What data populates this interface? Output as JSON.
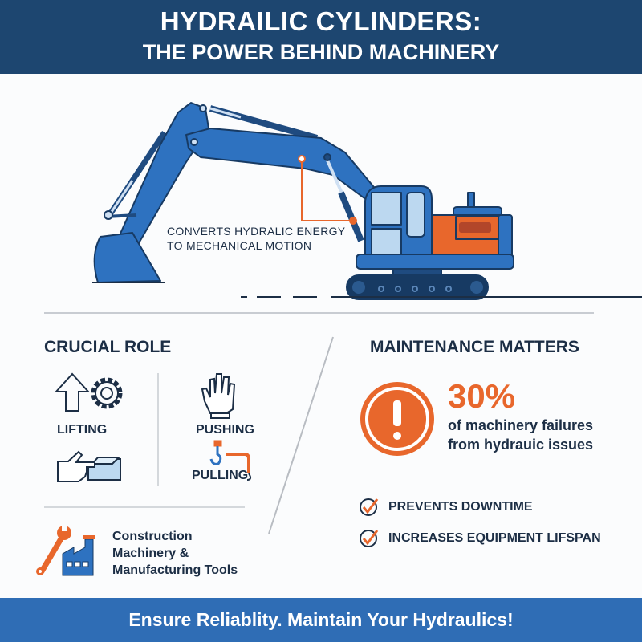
{
  "header": {
    "title": "HYDRAILIC CYLINDERS:",
    "subtitle": "THE POWER BEHIND MACHINERY"
  },
  "hero": {
    "annotation_line1": "CONVERTS HYDRALIC ENERGY",
    "annotation_line2": "TO MECHANICAL MOTION",
    "icon": "excavator-illustration"
  },
  "crucial_role": {
    "title": "CRUCIAL ROLE",
    "items": [
      {
        "label": "LIFTING",
        "icon": "arrow-up-gear-icon"
      },
      {
        "label": "PUSHING",
        "icon": "hand-icon"
      },
      {
        "label": "PULLING",
        "icon": "hook-icon"
      }
    ],
    "extra_icon": "hand-push-box-icon",
    "applications": {
      "line1": "Construction",
      "line2": "Machinery &",
      "line3": "Manufacturing Tools",
      "icon": "wrench-factory-icon"
    }
  },
  "maintenance": {
    "title": "MAINTENANCE MATTERS",
    "stat": "30%",
    "stat_line1": "of machinery failures",
    "stat_line2": "from hydrauic issues",
    "checks": [
      "PREVENTS DOWNTIME",
      "INCREASES EQUIPMENT LIFSPAN"
    ]
  },
  "footer": {
    "text": "Ensure Reliablity. Maintain Your Hydraulics!"
  },
  "colors": {
    "navy": "#1d4670",
    "blue": "#2e72c0",
    "orange": "#e8672c",
    "text": "#1c2e45",
    "footer": "#2f6db5"
  }
}
